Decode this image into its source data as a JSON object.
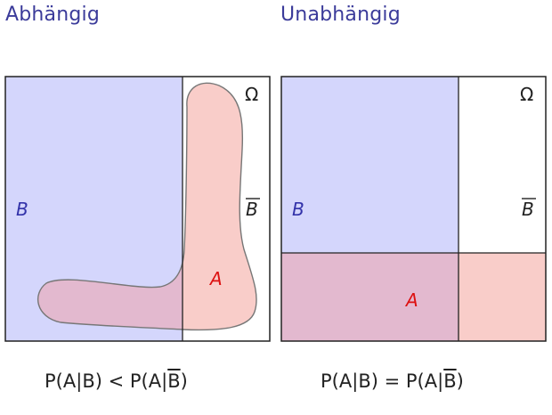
{
  "headings": {
    "left": "Abhängig",
    "right": "Unabhängig"
  },
  "left_panel": {
    "omega": "Ω",
    "label_b": "B",
    "label_b_complement": "B",
    "label_a": "A"
  },
  "right_panel": {
    "omega": "Ω",
    "label_b": "B",
    "label_b_complement": "B",
    "label_a": "A"
  },
  "formulas": {
    "left": {
      "lhs_prefix": "P(A|",
      "lhs_set": "B",
      "lhs_suffix": ")",
      "relation": " < ",
      "rhs_prefix": "P(A|",
      "rhs_set": "B",
      "rhs_suffix": ")"
    },
    "right": {
      "lhs_prefix": "P(A|",
      "lhs_set": "B",
      "lhs_suffix": ")",
      "relation": " = ",
      "rhs_prefix": "P(A|",
      "rhs_set": "B",
      "rhs_suffix": ")"
    }
  },
  "colors": {
    "heading": "#3b3b9a",
    "region_b": "#d4d6fc",
    "region_a": "#f9cdc9",
    "region_overlap": "#e3b9cf",
    "label_b": "#3333aa",
    "label_a": "#dd1111",
    "border": "#222222"
  }
}
